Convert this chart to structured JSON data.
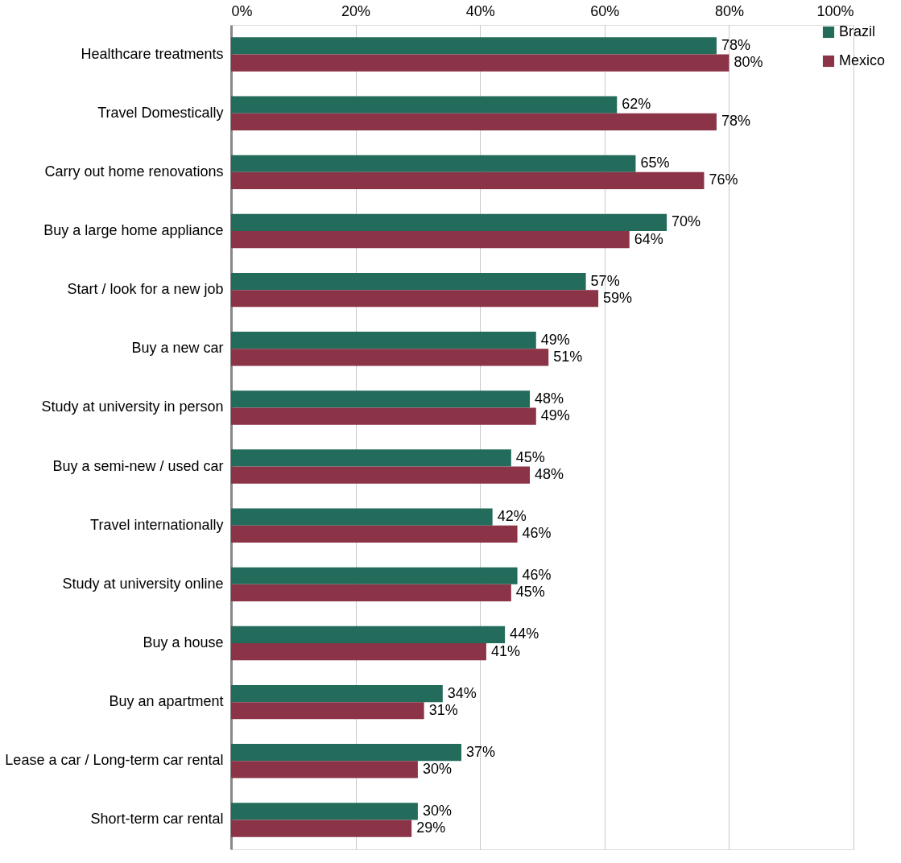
{
  "chart_data": {
    "type": "bar",
    "orientation": "horizontal",
    "categories": [
      "Healthcare treatments",
      "Travel Domestically",
      "Carry out home renovations",
      "Buy a large home appliance",
      "Start / look for a new job",
      "Buy a new car",
      "Study at university in person",
      "Buy a semi-new / used car",
      "Travel internationally",
      "Study at university online",
      "Buy a house",
      "Buy an apartment",
      "Lease a car / Long-term car rental",
      "Short-term car rental"
    ],
    "series": [
      {
        "name": "Brazil",
        "color": "#236b5b",
        "values": [
          78,
          62,
          65,
          70,
          57,
          49,
          48,
          45,
          42,
          46,
          44,
          34,
          37,
          30
        ],
        "value_labels": [
          "78%",
          "62%",
          "65%",
          "70%",
          "57%",
          "49%",
          "48%",
          "45%",
          "42%",
          "46%",
          "44%",
          "34%",
          "37%",
          "30%"
        ]
      },
      {
        "name": "Mexico",
        "color": "#8b3347",
        "values": [
          80,
          78,
          76,
          64,
          59,
          51,
          49,
          48,
          46,
          45,
          41,
          31,
          30,
          29
        ],
        "value_labels": [
          "80%",
          "78%",
          "76%",
          "64%",
          "59%",
          "51%",
          "49%",
          "48%",
          "46%",
          "45%",
          "41%",
          "31%",
          "30%",
          "29%"
        ]
      }
    ],
    "xlim": [
      0,
      100
    ],
    "xticks": [
      {
        "value": 0,
        "label": "0%"
      },
      {
        "value": 20,
        "label": "20%"
      },
      {
        "value": 40,
        "label": "40%"
      },
      {
        "value": 60,
        "label": "60%"
      },
      {
        "value": 80,
        "label": "80%"
      },
      {
        "value": 100,
        "label": "100%"
      }
    ],
    "grid": "x",
    "legend": "right"
  }
}
